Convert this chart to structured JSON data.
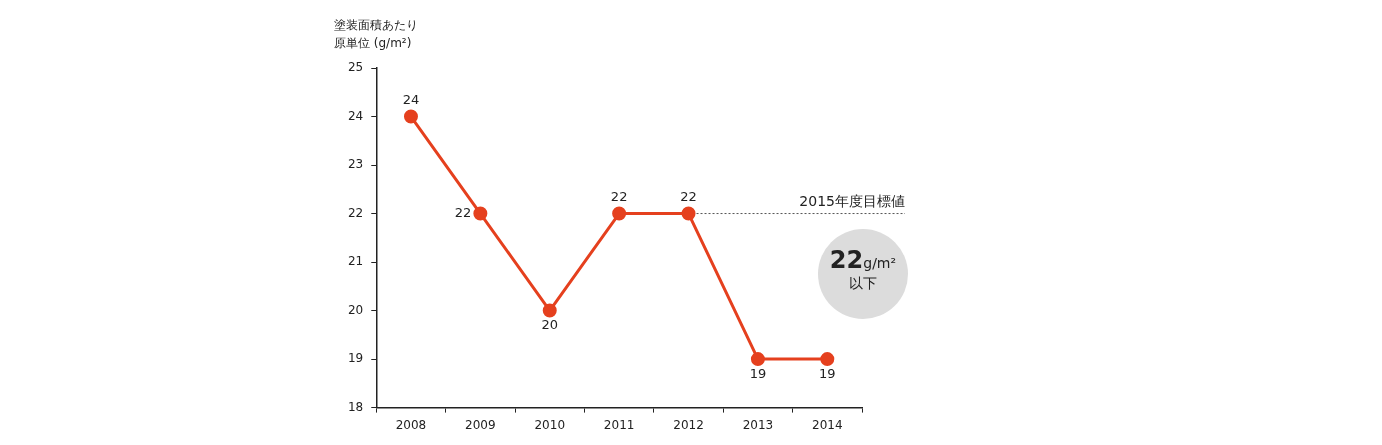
{
  "chart_data": {
    "type": "line",
    "ylabel": "塗装面積あたり原単位 (g/m²)",
    "categories": [
      "2008",
      "2009",
      "2010",
      "2011",
      "2012",
      "2013",
      "2014"
    ],
    "series": [
      {
        "color": "#e5401e",
        "values": [
          24,
          22,
          20,
          22,
          22,
          19,
          19
        ]
      }
    ],
    "ylim": [
      18,
      25
    ],
    "yticks": [
      18,
      19,
      20,
      21,
      22,
      23,
      24,
      25
    ],
    "grid": false,
    "legend": false,
    "marker": "circle",
    "line_style": "solid",
    "data_labels": true,
    "ref_lines": [
      {
        "axis": "y",
        "value": 22,
        "label": "2015年度目標値",
        "color": "#555555",
        "line_style": "dotted"
      }
    ],
    "annotations": [
      "22g/m² 以下"
    ]
  }
}
